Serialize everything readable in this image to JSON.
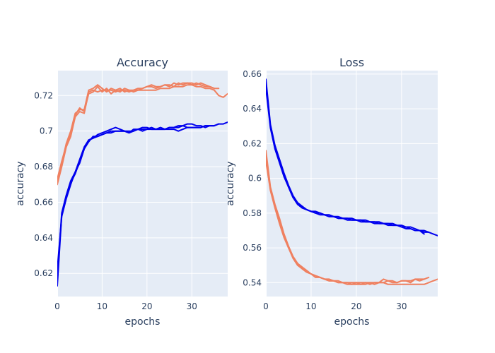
{
  "chart_data": [
    {
      "type": "line",
      "title": "Accuracy",
      "xlabel": "epochs",
      "ylabel": "accuracy",
      "xlim": [
        0,
        38
      ],
      "ylim": [
        0.607,
        0.734
      ],
      "xticks": [
        0,
        10,
        20,
        30
      ],
      "yticks": [
        0.62,
        0.64,
        0.66,
        0.68,
        0.7,
        0.72
      ],
      "ytick_labels": [
        "0.62",
        "0.64",
        "0.66",
        "0.68",
        "0.7",
        "0.72"
      ],
      "grid": true,
      "legend": "none",
      "series": [
        {
          "color": "#0000ee",
          "x": [
            0,
            1,
            2,
            3,
            4,
            5,
            6,
            7,
            8,
            9,
            10,
            11,
            12,
            13,
            14,
            15,
            16,
            17,
            18,
            19,
            20,
            21,
            22,
            23,
            24,
            25,
            26,
            27,
            28,
            29,
            30,
            31,
            32,
            33,
            34,
            35,
            36,
            37,
            38
          ],
          "values": [
            0.613,
            0.653,
            0.663,
            0.671,
            0.676,
            0.683,
            0.69,
            0.694,
            0.697,
            0.697,
            0.698,
            0.699,
            0.7,
            0.7,
            0.7,
            0.7,
            0.7,
            0.7,
            0.701,
            0.7,
            0.701,
            0.701,
            0.701,
            0.701,
            0.701,
            0.702,
            0.702,
            0.702,
            0.703,
            0.702,
            0.702,
            0.702,
            0.702,
            0.703,
            0.703,
            0.703,
            0.704,
            0.704,
            0.705
          ]
        },
        {
          "color": "#0000ee",
          "x": [
            0,
            1,
            2,
            3,
            4,
            5,
            6,
            7,
            8,
            9,
            10,
            11,
            12,
            13,
            14,
            15,
            16,
            17,
            18,
            19,
            20,
            21,
            22,
            23,
            24,
            25,
            26,
            27,
            28,
            29,
            30,
            31,
            32,
            33,
            34,
            35,
            36
          ],
          "values": [
            0.618,
            0.654,
            0.664,
            0.672,
            0.677,
            0.684,
            0.691,
            0.695,
            0.696,
            0.698,
            0.699,
            0.7,
            0.701,
            0.702,
            0.701,
            0.7,
            0.699,
            0.701,
            0.701,
            0.702,
            0.702,
            0.701,
            0.701,
            0.701,
            0.701,
            0.702,
            0.702,
            0.703,
            0.703,
            0.704,
            0.704,
            0.703,
            0.703,
            0.702,
            0.703,
            0.703,
            0.704
          ]
        },
        {
          "color": "#0000ee",
          "x": [
            0,
            1,
            2,
            3,
            4,
            5,
            6,
            7,
            8,
            9,
            10,
            11,
            12,
            13,
            14,
            15,
            16,
            17,
            18,
            19,
            20,
            21,
            22,
            23,
            24,
            25,
            26,
            27,
            28,
            29,
            30,
            31,
            32,
            33,
            34,
            35
          ],
          "values": [
            0.622,
            0.652,
            0.662,
            0.67,
            0.677,
            0.682,
            0.69,
            0.695,
            0.696,
            0.697,
            0.698,
            0.699,
            0.699,
            0.7,
            0.7,
            0.7,
            0.699,
            0.7,
            0.701,
            0.701,
            0.701,
            0.702,
            0.701,
            0.702,
            0.701,
            0.701,
            0.701,
            0.7,
            0.701,
            0.702,
            0.702,
            0.702,
            0.702,
            0.703,
            0.703,
            0.703
          ]
        },
        {
          "color": "#ef8060",
          "x": [
            0,
            1,
            2,
            3,
            4,
            5,
            6,
            7,
            8,
            9,
            10,
            11,
            12,
            13,
            14,
            15,
            16,
            17,
            18,
            19,
            20,
            21,
            22,
            23,
            24,
            25,
            26,
            27,
            28,
            29,
            30,
            31,
            32,
            33,
            34,
            35,
            36,
            37,
            38
          ],
          "values": [
            0.67,
            0.68,
            0.691,
            0.697,
            0.708,
            0.711,
            0.71,
            0.722,
            0.723,
            0.722,
            0.723,
            0.723,
            0.723,
            0.722,
            0.723,
            0.723,
            0.722,
            0.723,
            0.723,
            0.723,
            0.723,
            0.723,
            0.723,
            0.724,
            0.724,
            0.724,
            0.725,
            0.725,
            0.725,
            0.726,
            0.726,
            0.725,
            0.725,
            0.724,
            0.724,
            0.723,
            0.72,
            0.719,
            0.721
          ]
        },
        {
          "color": "#ef8060",
          "x": [
            0,
            1,
            2,
            3,
            4,
            5,
            6,
            7,
            8,
            9,
            10,
            11,
            12,
            13,
            14,
            15,
            16,
            17,
            18,
            19,
            20,
            21,
            22,
            23,
            24,
            25,
            26,
            27,
            28,
            29,
            30,
            31,
            32,
            33,
            34,
            35,
            36
          ],
          "values": [
            0.672,
            0.682,
            0.693,
            0.7,
            0.71,
            0.712,
            0.712,
            0.723,
            0.724,
            0.726,
            0.724,
            0.722,
            0.724,
            0.723,
            0.722,
            0.724,
            0.723,
            0.722,
            0.723,
            0.724,
            0.725,
            0.725,
            0.724,
            0.725,
            0.726,
            0.726,
            0.725,
            0.727,
            0.726,
            0.727,
            0.727,
            0.726,
            0.727,
            0.726,
            0.725,
            0.724,
            0.724
          ]
        },
        {
          "color": "#ef8060",
          "x": [
            0,
            1,
            2,
            3,
            4,
            5,
            6,
            7,
            8,
            9,
            10,
            11,
            12,
            13,
            14,
            15,
            16,
            17,
            18,
            19,
            20,
            21,
            22,
            23,
            24,
            25,
            26,
            27,
            28,
            29,
            30,
            31,
            32,
            33,
            34,
            35
          ],
          "values": [
            0.673,
            0.683,
            0.692,
            0.698,
            0.709,
            0.713,
            0.711,
            0.721,
            0.722,
            0.725,
            0.722,
            0.724,
            0.721,
            0.723,
            0.724,
            0.722,
            0.723,
            0.723,
            0.724,
            0.724,
            0.725,
            0.726,
            0.725,
            0.725,
            0.726,
            0.725,
            0.727,
            0.726,
            0.727,
            0.727,
            0.726,
            0.727,
            0.726,
            0.725,
            0.725,
            0.724
          ]
        }
      ]
    },
    {
      "type": "line",
      "title": "Loss",
      "xlabel": "epochs",
      "ylabel": "accuracy",
      "xlim": [
        0,
        38
      ],
      "ylim": [
        0.532,
        0.662
      ],
      "xticks": [
        0,
        10,
        20,
        30
      ],
      "yticks": [
        0.54,
        0.56,
        0.58,
        0.6,
        0.62,
        0.64,
        0.66
      ],
      "ytick_labels": [
        "0.54",
        "0.56",
        "0.58",
        "0.6",
        "0.62",
        "0.64",
        "0.66"
      ],
      "grid": true,
      "legend": "none",
      "series": [
        {
          "color": "#0000ee",
          "x": [
            0,
            1,
            2,
            3,
            4,
            5,
            6,
            7,
            8,
            9,
            10,
            11,
            12,
            13,
            14,
            15,
            16,
            17,
            18,
            19,
            20,
            21,
            22,
            23,
            24,
            25,
            26,
            27,
            28,
            29,
            30,
            31,
            32,
            33,
            34,
            35,
            36,
            37,
            38
          ],
          "values": [
            0.657,
            0.631,
            0.619,
            0.611,
            0.603,
            0.596,
            0.59,
            0.586,
            0.584,
            0.582,
            0.581,
            0.581,
            0.58,
            0.579,
            0.579,
            0.578,
            0.578,
            0.577,
            0.577,
            0.577,
            0.576,
            0.576,
            0.576,
            0.575,
            0.575,
            0.575,
            0.574,
            0.574,
            0.574,
            0.573,
            0.573,
            0.572,
            0.572,
            0.571,
            0.57,
            0.57,
            0.569,
            0.568,
            0.567
          ]
        },
        {
          "color": "#0000ee",
          "x": [
            0,
            1,
            2,
            3,
            4,
            5,
            6,
            7,
            8,
            9,
            10,
            11,
            12,
            13,
            14,
            15,
            16,
            17,
            18,
            19,
            20,
            21,
            22,
            23,
            24,
            25,
            26,
            27,
            28,
            29,
            30,
            31,
            32,
            33,
            34,
            35,
            36
          ],
          "values": [
            0.655,
            0.63,
            0.618,
            0.61,
            0.602,
            0.595,
            0.589,
            0.586,
            0.583,
            0.582,
            0.581,
            0.58,
            0.58,
            0.579,
            0.578,
            0.578,
            0.577,
            0.577,
            0.577,
            0.576,
            0.576,
            0.576,
            0.575,
            0.575,
            0.575,
            0.574,
            0.574,
            0.574,
            0.573,
            0.573,
            0.572,
            0.571,
            0.571,
            0.57,
            0.57,
            0.569,
            0.569
          ]
        },
        {
          "color": "#0000ee",
          "x": [
            0,
            1,
            2,
            3,
            4,
            5,
            6,
            7,
            8,
            9,
            10,
            11,
            12,
            13,
            14,
            15,
            16,
            17,
            18,
            19,
            20,
            21,
            22,
            23,
            24,
            25,
            26,
            27,
            28,
            29,
            30,
            31,
            32,
            33,
            34,
            35
          ],
          "values": [
            0.652,
            0.629,
            0.617,
            0.609,
            0.601,
            0.595,
            0.589,
            0.585,
            0.583,
            0.582,
            0.581,
            0.58,
            0.579,
            0.579,
            0.578,
            0.578,
            0.577,
            0.577,
            0.576,
            0.576,
            0.576,
            0.575,
            0.575,
            0.575,
            0.574,
            0.574,
            0.574,
            0.573,
            0.573,
            0.573,
            0.572,
            0.572,
            0.571,
            0.57,
            0.57,
            0.568
          ]
        },
        {
          "color": "#ef8060",
          "x": [
            0,
            1,
            2,
            3,
            4,
            5,
            6,
            7,
            8,
            9,
            10,
            11,
            12,
            13,
            14,
            15,
            16,
            17,
            18,
            19,
            20,
            21,
            22,
            23,
            24,
            25,
            26,
            27,
            28,
            29,
            30,
            31,
            32,
            33,
            34,
            35,
            36,
            37,
            38
          ],
          "values": [
            0.616,
            0.595,
            0.585,
            0.577,
            0.568,
            0.561,
            0.555,
            0.551,
            0.549,
            0.547,
            0.545,
            0.544,
            0.543,
            0.542,
            0.542,
            0.541,
            0.541,
            0.54,
            0.54,
            0.54,
            0.54,
            0.54,
            0.54,
            0.54,
            0.54,
            0.54,
            0.54,
            0.539,
            0.539,
            0.539,
            0.539,
            0.539,
            0.539,
            0.539,
            0.539,
            0.539,
            0.54,
            0.541,
            0.542
          ]
        },
        {
          "color": "#ef8060",
          "x": [
            0,
            1,
            2,
            3,
            4,
            5,
            6,
            7,
            8,
            9,
            10,
            11,
            12,
            13,
            14,
            15,
            16,
            17,
            18,
            19,
            20,
            21,
            22,
            23,
            24,
            25,
            26,
            27,
            28,
            29,
            30,
            31,
            32,
            33,
            34,
            35,
            36
          ],
          "values": [
            0.613,
            0.594,
            0.584,
            0.575,
            0.567,
            0.56,
            0.555,
            0.551,
            0.548,
            0.546,
            0.545,
            0.544,
            0.543,
            0.542,
            0.541,
            0.541,
            0.54,
            0.54,
            0.54,
            0.539,
            0.539,
            0.539,
            0.539,
            0.54,
            0.539,
            0.54,
            0.54,
            0.541,
            0.541,
            0.54,
            0.541,
            0.541,
            0.541,
            0.542,
            0.542,
            0.542,
            0.543
          ]
        },
        {
          "color": "#ef8060",
          "x": [
            0,
            1,
            2,
            3,
            4,
            5,
            6,
            7,
            8,
            9,
            10,
            11,
            12,
            13,
            14,
            15,
            16,
            17,
            18,
            19,
            20,
            21,
            22,
            23,
            24,
            25,
            26,
            27,
            28,
            29,
            30,
            31,
            32,
            33,
            34,
            35
          ],
          "values": [
            0.61,
            0.593,
            0.583,
            0.574,
            0.566,
            0.56,
            0.554,
            0.55,
            0.548,
            0.546,
            0.545,
            0.543,
            0.543,
            0.542,
            0.541,
            0.541,
            0.54,
            0.54,
            0.539,
            0.539,
            0.54,
            0.539,
            0.54,
            0.539,
            0.54,
            0.54,
            0.542,
            0.541,
            0.54,
            0.54,
            0.541,
            0.541,
            0.54,
            0.542,
            0.541,
            0.542
          ]
        }
      ]
    }
  ]
}
